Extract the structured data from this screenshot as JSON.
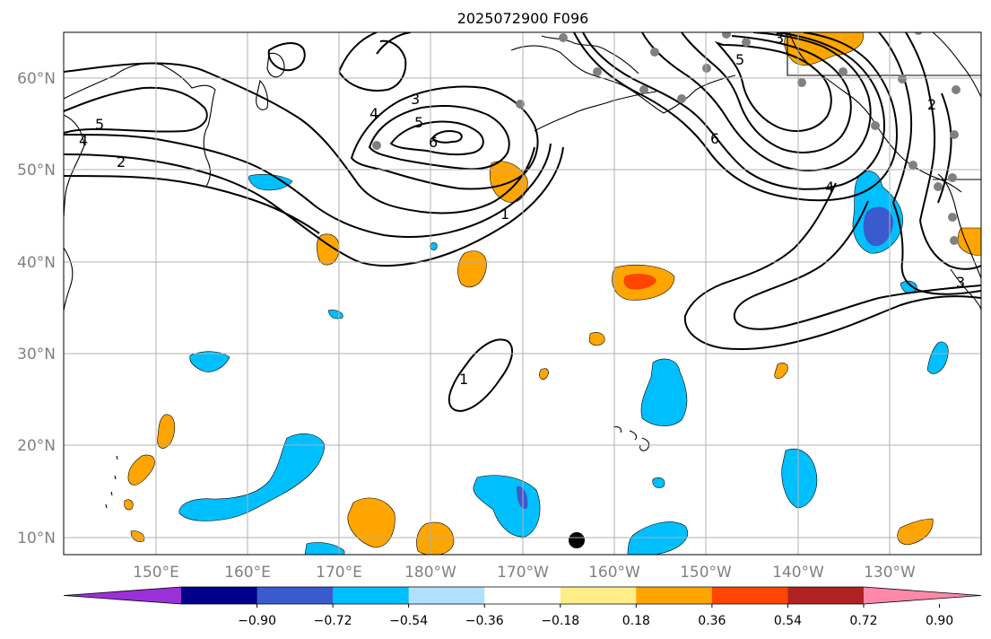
{
  "title": "2025072900 F096",
  "lat_labels": [
    "60°N",
    "50°N",
    "40°N",
    "30°N",
    "20°N",
    "10°N"
  ],
  "lon_labels": [
    "150°E",
    "160°E",
    "170°E",
    "180°W",
    "170°W",
    "160°W",
    "150°W",
    "140°W",
    "130°W"
  ],
  "colorbar": {
    "ticks": [
      "−0.90",
      "−0.72",
      "−0.54",
      "−0.36",
      "−0.18",
      "0.18",
      "0.36",
      "0.54",
      "0.72",
      "0.90"
    ],
    "colors": [
      "#9b30d9",
      "#00008b",
      "#3a5bcd",
      "#00bfff",
      "#b0e0ff",
      "#ffffff",
      "#ffee88",
      "#ffa500",
      "#ff4500",
      "#b22222",
      "#ff88aa"
    ]
  },
  "contour_labels": [
    "1",
    "2",
    "3",
    "4",
    "5",
    "6",
    "1",
    "2",
    "3",
    "4",
    "5",
    "6",
    "1",
    "3"
  ],
  "colors": {
    "positive_fill": "#ffa500",
    "positive_strong": "#ff4500",
    "negative_fill": "#00bfff",
    "negative_strong": "#3a5bcd",
    "contour": "#000000",
    "gridline": "#b0b0b0",
    "station_marker": "#808080",
    "storm_marker": "#000000"
  }
}
